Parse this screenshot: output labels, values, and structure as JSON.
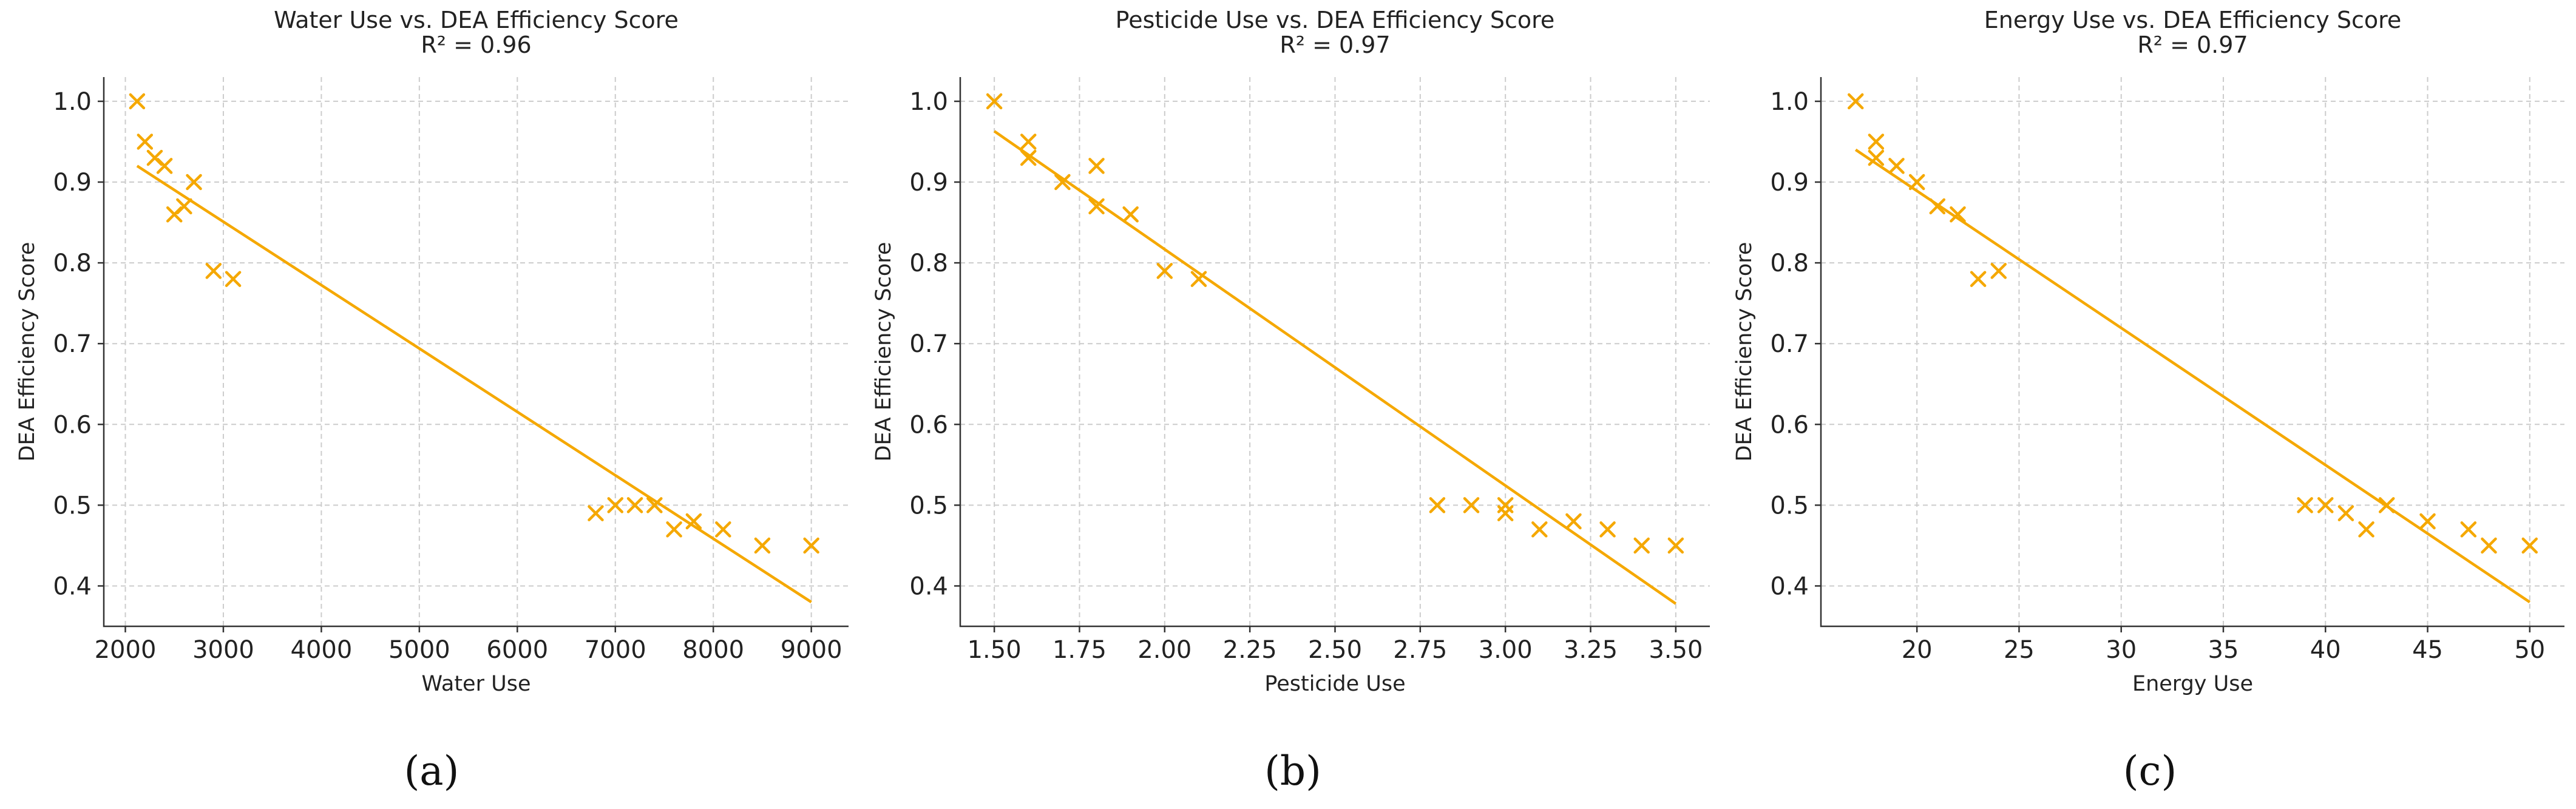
{
  "accent_color": "#f5a800",
  "chart_data": [
    {
      "type": "scatter",
      "id": "water",
      "title": "Water Use vs. DEA Efficiency Score",
      "subtitle": "R² = 0.96",
      "xlabel": "Water Use",
      "ylabel": "DEA Efficiency Score",
      "panel_label": "(a)",
      "xlim": [
        1780,
        9380
      ],
      "ylim": [
        0.35,
        1.03
      ],
      "xticks": [
        2000,
        3000,
        4000,
        5000,
        6000,
        7000,
        8000,
        9000
      ],
      "xtick_labels": [
        "2000",
        "3000",
        "4000",
        "5000",
        "6000",
        "7000",
        "8000",
        "9000"
      ],
      "yticks": [
        0.4,
        0.5,
        0.6,
        0.7,
        0.8,
        0.9,
        1.0
      ],
      "ytick_labels": [
        "0.4",
        "0.5",
        "0.6",
        "0.7",
        "0.8",
        "0.9",
        "1.0"
      ],
      "points": {
        "x": [
          2120,
          2200,
          2300,
          2400,
          2500,
          2600,
          2700,
          2900,
          3100,
          6800,
          7000,
          7200,
          7400,
          7600,
          7800,
          8100,
          8500,
          9000
        ],
        "y": [
          1.0,
          0.95,
          0.93,
          0.92,
          0.86,
          0.87,
          0.9,
          0.79,
          0.78,
          0.49,
          0.5,
          0.5,
          0.5,
          0.47,
          0.48,
          0.47,
          0.45,
          0.45
        ]
      },
      "fit_line": {
        "x": [
          2120,
          9000
        ],
        "y": [
          0.92,
          0.38
        ]
      },
      "grid": true
    },
    {
      "type": "scatter",
      "id": "pesticide",
      "title": "Pesticide Use vs. DEA Efficiency Score",
      "subtitle": "R² = 0.97",
      "xlabel": "Pesticide Use",
      "ylabel": "DEA Efficiency Score",
      "panel_label": "(b)",
      "xlim": [
        1.4,
        3.6
      ],
      "ylim": [
        0.35,
        1.03
      ],
      "xticks": [
        1.5,
        1.75,
        2.0,
        2.25,
        2.5,
        2.75,
        3.0,
        3.25,
        3.5
      ],
      "xtick_labels": [
        "1.50",
        "1.75",
        "2.00",
        "2.25",
        "2.50",
        "2.75",
        "3.00",
        "3.25",
        "3.50"
      ],
      "yticks": [
        0.4,
        0.5,
        0.6,
        0.7,
        0.8,
        0.9,
        1.0
      ],
      "ytick_labels": [
        "0.4",
        "0.5",
        "0.6",
        "0.7",
        "0.8",
        "0.9",
        "1.0"
      ],
      "points": {
        "x": [
          1.5,
          1.6,
          1.6,
          1.7,
          1.8,
          1.8,
          1.9,
          2.0,
          2.1,
          2.8,
          2.9,
          3.0,
          3.0,
          3.1,
          3.2,
          3.3,
          3.4,
          3.5
        ],
        "y": [
          1.0,
          0.95,
          0.93,
          0.9,
          0.92,
          0.87,
          0.86,
          0.79,
          0.78,
          0.5,
          0.5,
          0.5,
          0.49,
          0.47,
          0.48,
          0.47,
          0.45,
          0.45
        ]
      },
      "fit_line": {
        "x": [
          1.5,
          3.5
        ],
        "y": [
          0.963,
          0.378
        ]
      },
      "grid": true
    },
    {
      "type": "scatter",
      "id": "energy",
      "title": "Energy Use vs. DEA Efficiency Score",
      "subtitle": "R² = 0.97",
      "xlabel": "Energy Use",
      "ylabel": "DEA Efficiency Score",
      "panel_label": "(c)",
      "xlim": [
        15.3,
        51.7
      ],
      "ylim": [
        0.35,
        1.03
      ],
      "xticks": [
        20,
        25,
        30,
        35,
        40,
        45,
        50
      ],
      "xtick_labels": [
        "20",
        "25",
        "30",
        "35",
        "40",
        "45",
        "50"
      ],
      "yticks": [
        0.4,
        0.5,
        0.6,
        0.7,
        0.8,
        0.9,
        1.0
      ],
      "ytick_labels": [
        "0.4",
        "0.5",
        "0.6",
        "0.7",
        "0.8",
        "0.9",
        "1.0"
      ],
      "points": {
        "x": [
          17,
          18,
          18,
          19,
          20,
          21,
          22,
          23,
          24,
          39,
          40,
          41,
          42,
          43,
          45,
          47,
          48,
          50
        ],
        "y": [
          1.0,
          0.95,
          0.93,
          0.92,
          0.9,
          0.87,
          0.86,
          0.78,
          0.79,
          0.5,
          0.5,
          0.49,
          0.47,
          0.5,
          0.48,
          0.47,
          0.45,
          0.45
        ]
      },
      "fit_line": {
        "x": [
          17,
          50
        ],
        "y": [
          0.94,
          0.38
        ]
      },
      "grid": true
    }
  ]
}
